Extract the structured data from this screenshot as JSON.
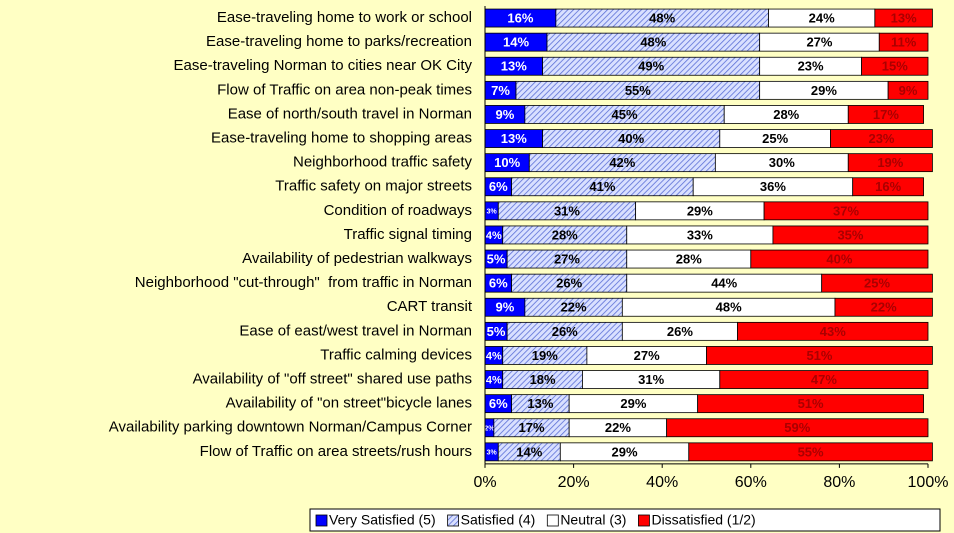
{
  "chart_data": {
    "type": "stacked-barh",
    "categories": [
      "Ease-traveling home to work or school",
      "Ease-traveling home to parks/recreation",
      "Ease-traveling Norman to cities near OK City",
      "Flow of Traffic on area non-peak times",
      "Ease of north/south travel in Norman",
      "Ease-traveling home to shopping areas",
      "Neighborhood traffic safety",
      "Traffic safety on major streets",
      "Condition of roadways",
      "Traffic signal timing",
      "Availability of pedestrian walkways",
      "Neighborhood \"cut-through\"  from traffic in Norman",
      "CART transit",
      "Ease of east/west travel in Norman",
      "Traffic calming devices",
      "Availability of \"off street\" shared use paths",
      "Availability of \"on street\"bicycle lanes",
      "Availability parking downtown Norman/Campus Corner",
      "Flow of Traffic on area streets/rush hours"
    ],
    "series": [
      {
        "name": "Very Satisfied (5)",
        "color": "#0000ff",
        "values": [
          16,
          14,
          13,
          7,
          9,
          13,
          10,
          6,
          3,
          4,
          5,
          6,
          9,
          5,
          4,
          4,
          6,
          2,
          3
        ],
        "value_labels": [
          "16%",
          "14%",
          "13%",
          "7%",
          "9%",
          "13%",
          "10%",
          "6%",
          "3%",
          "4%",
          "5%",
          "6%",
          "9%",
          "5%",
          "4%",
          "4%",
          "6%",
          "2%",
          "3%"
        ]
      },
      {
        "name": "Satisfied (4)",
        "color": "#5b6fd6",
        "hatch": true,
        "values": [
          48,
          48,
          49,
          55,
          45,
          40,
          42,
          41,
          31,
          28,
          27,
          26,
          22,
          26,
          19,
          18,
          13,
          17,
          14
        ],
        "value_labels": [
          "48%",
          "48%",
          "49%",
          "55%",
          "45%",
          "40%",
          "42%",
          "41%",
          "31%",
          "28%",
          "27%",
          "26%",
          "22%",
          "26%",
          "19%",
          "18%",
          "13%",
          "17%",
          "14%"
        ]
      },
      {
        "name": "Neutral (3)",
        "color": "#ffffff",
        "values": [
          24,
          27,
          23,
          29,
          28,
          25,
          30,
          36,
          29,
          33,
          28,
          44,
          48,
          26,
          27,
          31,
          29,
          22,
          29
        ],
        "value_labels": [
          "24%",
          "27%",
          "23%",
          "29%",
          "28%",
          "25%",
          "30%",
          "36%",
          "29%",
          "33%",
          "28%",
          "44%",
          "48%",
          "26%",
          "27%",
          "31%",
          "29%",
          "22%",
          "29%"
        ]
      },
      {
        "name": "Dissatisfied (1/2)",
        "color": "#ff0000",
        "values": [
          13,
          11,
          15,
          9,
          17,
          23,
          19,
          16,
          37,
          35,
          40,
          25,
          22,
          43,
          51,
          47,
          51,
          59,
          55
        ],
        "value_labels": [
          "13%",
          "11%",
          "15%",
          "9%",
          "17%",
          "23%",
          "19%",
          "16%",
          "37%",
          "35%",
          "40%",
          "25%",
          "22%",
          "43%",
          "51%",
          "47%",
          "51%",
          "59%",
          "55%"
        ]
      }
    ],
    "xlim": [
      0,
      100
    ],
    "xticks": [
      {
        "value": 0,
        "label": "0%"
      },
      {
        "value": 20,
        "label": "20%"
      },
      {
        "value": 40,
        "label": "40%"
      },
      {
        "value": 60,
        "label": "60%"
      },
      {
        "value": 80,
        "label": "80%"
      },
      {
        "value": 100,
        "label": "100%"
      }
    ],
    "legend": "bottom"
  }
}
